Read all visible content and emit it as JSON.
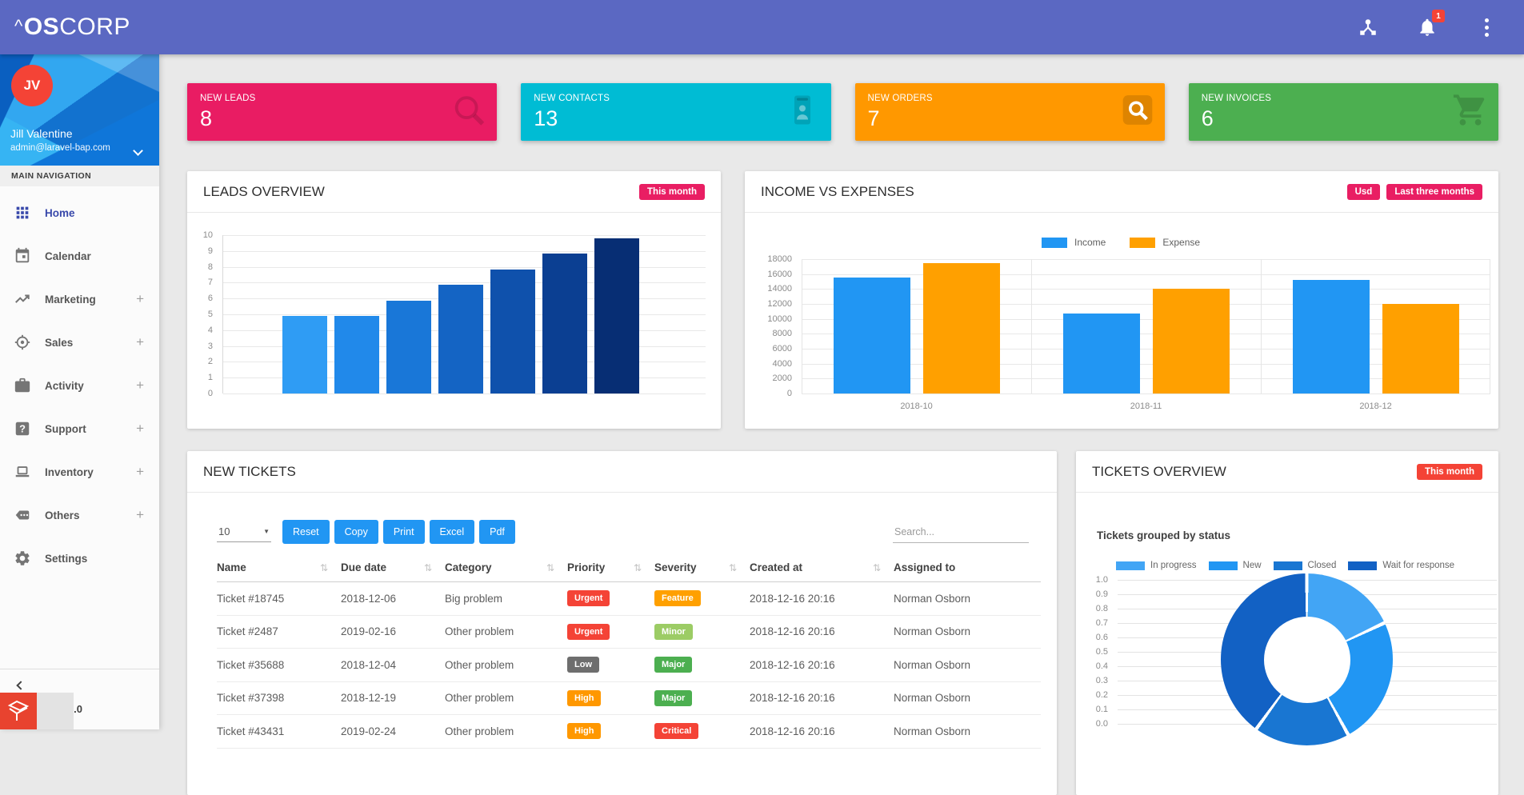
{
  "header": {
    "logo": {
      "caret": "^",
      "bold": "OS",
      "rest": "CORP"
    },
    "notifications_count": "1"
  },
  "sidebar": {
    "user": {
      "initials": "JV",
      "name": "Jill Valentine",
      "email": "admin@laravel-bap.com"
    },
    "section_label": "MAIN NAVIGATION",
    "items": [
      {
        "label": "Home",
        "icon": "grid",
        "active": true,
        "expandable": false
      },
      {
        "label": "Calendar",
        "icon": "calendar",
        "active": false,
        "expandable": false
      },
      {
        "label": "Marketing",
        "icon": "trending-up",
        "active": false,
        "expandable": true
      },
      {
        "label": "Sales",
        "icon": "target",
        "active": false,
        "expandable": true
      },
      {
        "label": "Activity",
        "icon": "briefcase",
        "active": false,
        "expandable": true
      },
      {
        "label": "Support",
        "icon": "help",
        "active": false,
        "expandable": true
      },
      {
        "label": "Inventory",
        "icon": "laptop",
        "active": false,
        "expandable": true
      },
      {
        "label": "Others",
        "icon": "chat",
        "active": false,
        "expandable": true
      },
      {
        "label": "Settings",
        "icon": "gear",
        "active": false,
        "expandable": false
      }
    ],
    "version": "Version: 2.0"
  },
  "stat_cards": [
    {
      "label": "NEW LEADS",
      "value": "8",
      "color": "#e91c63",
      "icon": "magnifier"
    },
    {
      "label": "NEW CONTACTS",
      "value": "13",
      "color": "#00bcd4",
      "icon": "contact-card"
    },
    {
      "label": "NEW ORDERS",
      "value": "7",
      "color": "#ff9800",
      "icon": "search-box"
    },
    {
      "label": "NEW INVOICES",
      "value": "6",
      "color": "#4caf50",
      "icon": "cart"
    }
  ],
  "cards": {
    "leads": {
      "title": "LEADS OVERVIEW",
      "badge": "This month",
      "badge_color": "#e91e63"
    },
    "income": {
      "title": "INCOME VS EXPENSES",
      "badges": [
        "Usd",
        "Last three months"
      ],
      "badge_color": "#e91e63"
    },
    "tickets": {
      "title": "NEW TICKETS",
      "page_size": "10",
      "buttons": [
        "Reset",
        "Copy",
        "Print",
        "Excel",
        "Pdf"
      ],
      "search_placeholder": "Search...",
      "columns": [
        {
          "label": "Name",
          "sortable": true
        },
        {
          "label": "Due date",
          "sortable": true
        },
        {
          "label": "Category",
          "sortable": true
        },
        {
          "label": "Priority",
          "sortable": true
        },
        {
          "label": "Severity",
          "sortable": true
        },
        {
          "label": "Created at",
          "sortable": true
        },
        {
          "label": "Assigned to",
          "sortable": false
        }
      ],
      "rows": [
        {
          "name": "Ticket #18745",
          "due": "2018-12-06",
          "category": "Big problem",
          "priority": {
            "label": "Urgent",
            "color": "#f44336"
          },
          "severity": {
            "label": "Feature",
            "color": "#ffa000"
          },
          "created": "2018-12-16 20:16",
          "assigned": "Norman Osborn"
        },
        {
          "name": "Ticket #2487",
          "due": "2019-02-16",
          "category": "Other problem",
          "priority": {
            "label": "Urgent",
            "color": "#f44336"
          },
          "severity": {
            "label": "Minor",
            "color": "#9ccc65"
          },
          "created": "2018-12-16 20:16",
          "assigned": "Norman Osborn"
        },
        {
          "name": "Ticket #35688",
          "due": "2018-12-04",
          "category": "Other problem",
          "priority": {
            "label": "Low",
            "color": "#6e6e6e"
          },
          "severity": {
            "label": "Major",
            "color": "#4caf50"
          },
          "created": "2018-12-16 20:16",
          "assigned": "Norman Osborn"
        },
        {
          "name": "Ticket #37398",
          "due": "2018-12-19",
          "category": "Other problem",
          "priority": {
            "label": "High",
            "color": "#ff9800"
          },
          "severity": {
            "label": "Major",
            "color": "#4caf50"
          },
          "created": "2018-12-16 20:16",
          "assigned": "Norman Osborn"
        },
        {
          "name": "Ticket #43431",
          "due": "2019-02-24",
          "category": "Other problem",
          "priority": {
            "label": "High",
            "color": "#ff9800"
          },
          "severity": {
            "label": "Critical",
            "color": "#f44336"
          },
          "created": "2018-12-16 20:16",
          "assigned": "Norman Osborn"
        }
      ]
    },
    "overview": {
      "title": "TICKETS OVERVIEW",
      "badge": "This month",
      "badge_color": "#f44336",
      "subtitle": "Tickets grouped by status"
    }
  },
  "chart_data": [
    {
      "id": "leads_overview",
      "type": "bar",
      "title": "LEADS OVERVIEW",
      "categories": [
        "",
        "",
        "",
        "",
        "",
        "",
        ""
      ],
      "values": [
        5,
        5,
        6,
        7,
        8,
        9,
        10
      ],
      "bar_colors": [
        "#2f9cf4",
        "#2189ea",
        "#1977d8",
        "#1464c4",
        "#0f51ac",
        "#0b3f92",
        "#072e74"
      ],
      "xlabel": "",
      "ylabel": "",
      "ylim": [
        0,
        10
      ],
      "ytick_step": 1,
      "grid": true,
      "legend": false
    },
    {
      "id": "income_vs_expenses",
      "type": "bar",
      "title": "INCOME VS EXPENSES",
      "categories": [
        "2018-10",
        "2018-11",
        "2018-12"
      ],
      "series": [
        {
          "name": "Income",
          "color": "#2196f3",
          "values": [
            15500,
            10700,
            15200
          ]
        },
        {
          "name": "Expense",
          "color": "#ffa000",
          "values": [
            17500,
            14000,
            12000
          ]
        }
      ],
      "xlabel": "",
      "ylabel": "",
      "ylim": [
        0,
        18000
      ],
      "ytick_step": 2000,
      "grid": true,
      "legend_position": "top"
    },
    {
      "id": "tickets_by_status",
      "type": "pie",
      "donut": true,
      "title": "Tickets grouped by status",
      "labels": [
        "In progress",
        "New",
        "Closed",
        "Wait for response"
      ],
      "values_percent": [
        18,
        24,
        18,
        40
      ],
      "colors": [
        "#42a5f5",
        "#2196f3",
        "#1976d2",
        "#1261c4"
      ],
      "legend_position": "top",
      "radial_ticks": [
        "1.0",
        "0.9",
        "0.8",
        "0.7",
        "0.6",
        "0.5",
        "0.4",
        "0.3",
        "0.2",
        "0.1",
        "0.0"
      ]
    }
  ]
}
